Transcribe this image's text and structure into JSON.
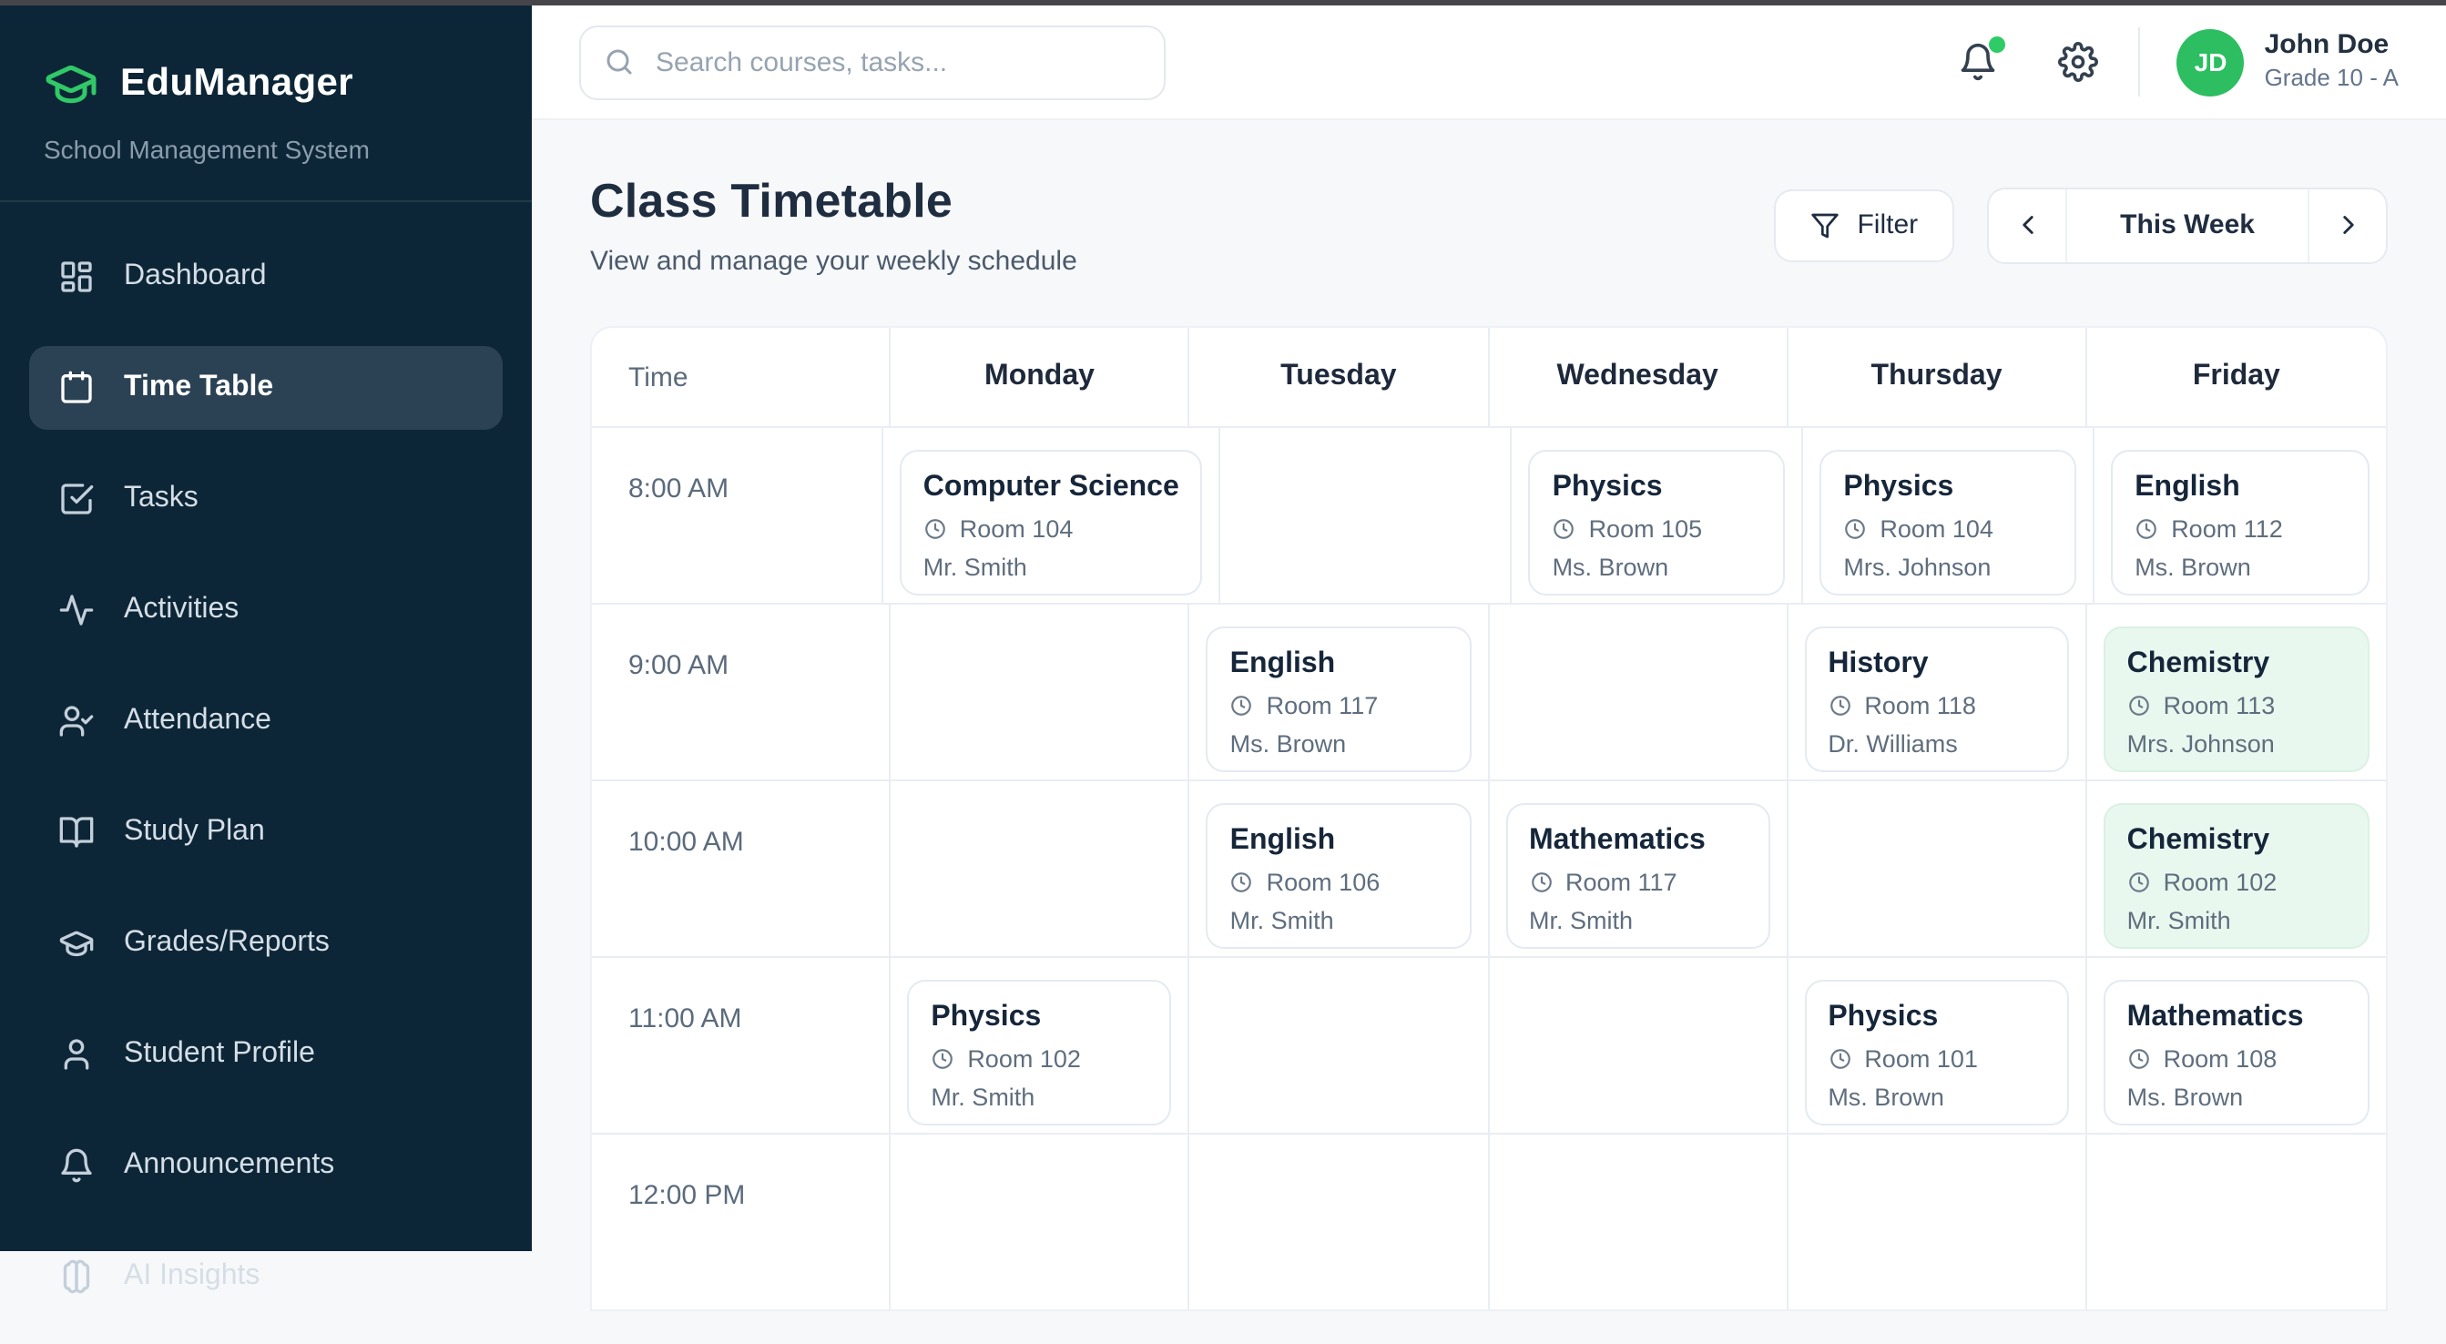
{
  "window": {
    "edge_color": "#46464a"
  },
  "colors": {
    "sidebar_bg": "#0d2637",
    "sidebar_active_bg": "#2b4254",
    "brand_green": "#31c968",
    "avatar_green": "#2cbe60",
    "notification_dot_green": "#2ecc66",
    "highlight_card_bg": "#e9f8ef",
    "title_navy": "#1f2d40"
  },
  "sidebar": {
    "brand": {
      "logo_icon": "graduation-cap-icon",
      "name": "EduManager",
      "subtitle": "School Management System"
    },
    "items": [
      {
        "label": "Dashboard",
        "icon": "dashboard-icon",
        "active": false
      },
      {
        "label": "Time Table",
        "icon": "calendar-icon",
        "active": true
      },
      {
        "label": "Tasks",
        "icon": "tasks-icon",
        "active": false
      },
      {
        "label": "Activities",
        "icon": "activity-icon",
        "active": false
      },
      {
        "label": "Attendance",
        "icon": "user-check-icon",
        "active": false
      },
      {
        "label": "Study Plan",
        "icon": "book-open-icon",
        "active": false
      },
      {
        "label": "Grades/Reports",
        "icon": "graduation-cap-icon",
        "active": false
      },
      {
        "label": "Student Profile",
        "icon": "user-icon",
        "active": false
      },
      {
        "label": "Announcements",
        "icon": "bell-icon",
        "active": false
      },
      {
        "label": "AI Insights",
        "icon": "brain-icon",
        "active": false
      }
    ]
  },
  "topbar": {
    "search_placeholder": "Search courses, tasks...",
    "icons": [
      "bell-icon",
      "gear-icon"
    ],
    "user": {
      "initials": "JD",
      "name": "John Doe",
      "grade": "Grade 10 - A"
    }
  },
  "page": {
    "title": "Class Timetable",
    "subtitle": "View and manage your weekly schedule",
    "filter_label": "Filter",
    "week_label": "This Week"
  },
  "timetable": {
    "columns": [
      "Time",
      "Monday",
      "Tuesday",
      "Wednesday",
      "Thursday",
      "Friday"
    ],
    "rows": [
      {
        "time": "8:00 AM",
        "cells": [
          {
            "subject": "Computer Science",
            "room": "Room 104",
            "teacher": "Mr. Smith",
            "highlight": false
          },
          null,
          {
            "subject": "Physics",
            "room": "Room 105",
            "teacher": "Ms. Brown",
            "highlight": false
          },
          {
            "subject": "Physics",
            "room": "Room 104",
            "teacher": "Mrs. Johnson",
            "highlight": false
          },
          {
            "subject": "English",
            "room": "Room 112",
            "teacher": "Ms. Brown",
            "highlight": false
          }
        ]
      },
      {
        "time": "9:00 AM",
        "cells": [
          null,
          {
            "subject": "English",
            "room": "Room 117",
            "teacher": "Ms. Brown",
            "highlight": false
          },
          null,
          {
            "subject": "History",
            "room": "Room 118",
            "teacher": "Dr. Williams",
            "highlight": false
          },
          {
            "subject": "Chemistry",
            "room": "Room 113",
            "teacher": "Mrs. Johnson",
            "highlight": true
          }
        ]
      },
      {
        "time": "10:00 AM",
        "cells": [
          null,
          {
            "subject": "English",
            "room": "Room 106",
            "teacher": "Mr. Smith",
            "highlight": false
          },
          {
            "subject": "Mathematics",
            "room": "Room 117",
            "teacher": "Mr. Smith",
            "highlight": false
          },
          null,
          {
            "subject": "Chemistry",
            "room": "Room 102",
            "teacher": "Mr. Smith",
            "highlight": true
          }
        ]
      },
      {
        "time": "11:00 AM",
        "cells": [
          {
            "subject": "Physics",
            "room": "Room 102",
            "teacher": "Mr. Smith",
            "highlight": false
          },
          null,
          null,
          {
            "subject": "Physics",
            "room": "Room 101",
            "teacher": "Ms. Brown",
            "highlight": false
          },
          {
            "subject": "Mathematics",
            "room": "Room 108",
            "teacher": "Ms. Brown",
            "highlight": false
          }
        ]
      },
      {
        "time": "12:00 PM",
        "cells": [
          null,
          null,
          null,
          null,
          null
        ]
      }
    ]
  }
}
